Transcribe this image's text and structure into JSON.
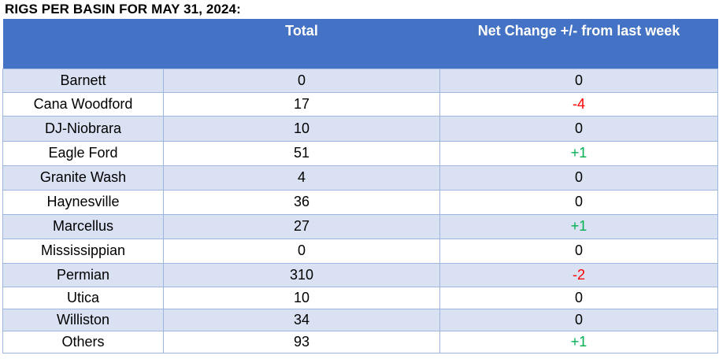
{
  "title": "RIGS PER BASIN FOR MAY 31, 2024:",
  "columns": [
    "",
    "Total",
    "Net Change +/- from last week"
  ],
  "colors": {
    "header_bg": "#4472c4",
    "row_alt_bg": "#d9e1f2",
    "negative": "#ff0000",
    "positive": "#00b050"
  },
  "rows": [
    {
      "basin": "Barnett",
      "total": "0",
      "change": "0"
    },
    {
      "basin": "Cana Woodford",
      "total": "17",
      "change": "-4"
    },
    {
      "basin": "DJ-Niobrara",
      "total": "10",
      "change": "0"
    },
    {
      "basin": "Eagle Ford",
      "total": "51",
      "change": "+1"
    },
    {
      "basin": "Granite Wash",
      "total": "4",
      "change": "0"
    },
    {
      "basin": "Haynesville",
      "total": "36",
      "change": "0"
    },
    {
      "basin": "Marcellus",
      "total": "27",
      "change": "+1"
    },
    {
      "basin": "Mississippian",
      "total": "0",
      "change": "0"
    },
    {
      "basin": "Permian",
      "total": "310",
      "change": "-2"
    },
    {
      "basin": "Utica",
      "total": "10",
      "change": "0"
    },
    {
      "basin": "Williston",
      "total": "34",
      "change": "0"
    },
    {
      "basin": "Others",
      "total": "93",
      "change": "+1"
    }
  ]
}
